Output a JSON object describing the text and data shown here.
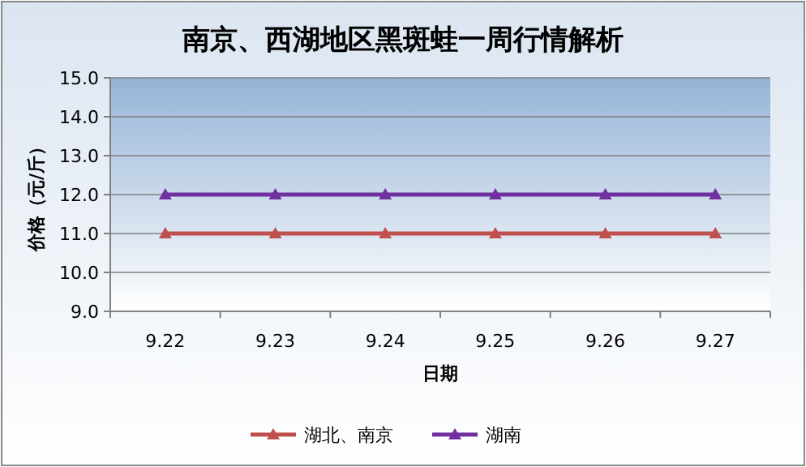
{
  "chart_data": {
    "type": "line",
    "title": "南京、西湖地区黑斑蛙一周行情解析",
    "xlabel": "日期",
    "ylabel": "价格（元/斤）",
    "categories": [
      "9.22",
      "9.23",
      "9.24",
      "9.25",
      "9.26",
      "9.27"
    ],
    "series": [
      {
        "name": "湖北、南京",
        "color": "#c0504d",
        "values": [
          11,
          11,
          11,
          11,
          11,
          11
        ]
      },
      {
        "name": "湖南",
        "color": "#7030a0",
        "values": [
          12,
          12,
          12,
          12,
          12,
          12
        ]
      }
    ],
    "ylim": [
      9,
      15
    ],
    "yticks": [
      {
        "value": 9,
        "label": "9.0"
      },
      {
        "value": 10,
        "label": "10.0"
      },
      {
        "value": 11,
        "label": "11.0"
      },
      {
        "value": 12,
        "label": "12.0"
      },
      {
        "value": 13,
        "label": "13.0"
      },
      {
        "value": 14,
        "label": "14.0"
      },
      {
        "value": 15,
        "label": "15.0"
      }
    ],
    "grid": "y",
    "legend": "bottom",
    "marker": "triangle",
    "line_style": "solid"
  }
}
